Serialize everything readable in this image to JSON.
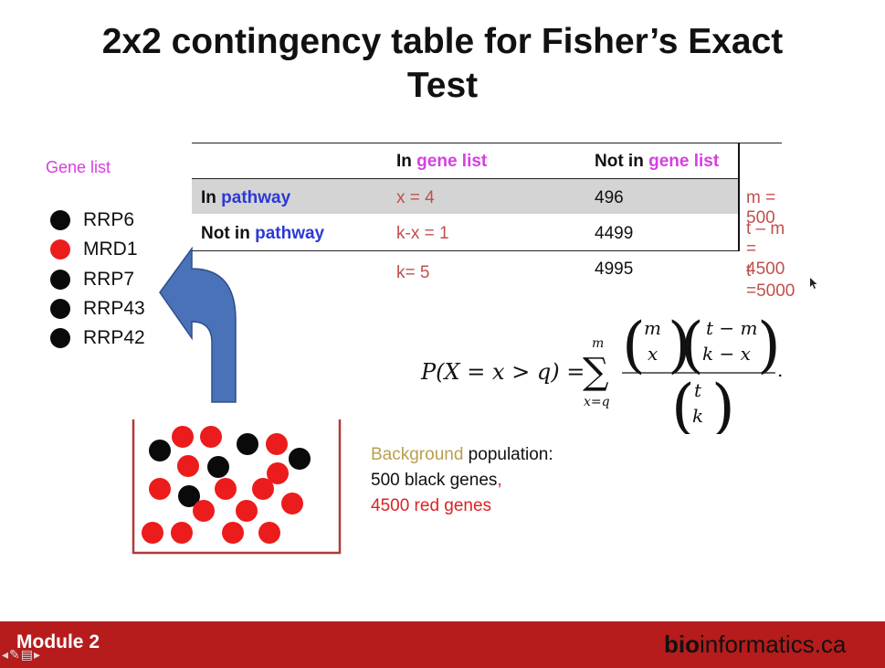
{
  "title_line1": "2x2 contingency table for Fisher’s Exact",
  "title_line2": "Test",
  "gene_list": {
    "label": "Gene list",
    "genes": [
      {
        "name": "RRP6",
        "color": "black"
      },
      {
        "name": "MRD1",
        "color": "red"
      },
      {
        "name": "RRP7",
        "color": "black"
      },
      {
        "name": "RRP43",
        "color": "black"
      },
      {
        "name": "RRP42",
        "color": "black"
      }
    ]
  },
  "table": {
    "col1_prefix": "In ",
    "col1_highlight": "gene list",
    "col2_prefix": "Not in ",
    "col2_highlight": "gene list",
    "row1_prefix": "In ",
    "row1_highlight": "pathway",
    "row2_prefix": "Not in ",
    "row2_highlight": "pathway",
    "r1c1": "x = 4",
    "r1c2": "496",
    "r2c1": "k-x = 1",
    "r2c2": "4499",
    "total_c1": "k= 5",
    "total_c2": "4995",
    "r1_total": "m = 500",
    "r2_total": "t – m = 4500",
    "grand_total": "t =5000"
  },
  "formula": {
    "lhs": "P(X = x > q) =",
    "sum_top": "m",
    "sum_bottom": "x=q",
    "b1_top": "m",
    "b1_bottom": "x",
    "b2_top": "t − m",
    "b2_bottom": "k − x",
    "b3_top": "t",
    "b3_bottom": "k"
  },
  "background": {
    "word1": "Background",
    "word2": " population:",
    "line2_a": "500 black genes",
    "line2_b": ",",
    "line3": "4500 red genes"
  },
  "footer": {
    "module": "Module 2",
    "logo_bold": "bio",
    "logo_rest": "informatics.ca"
  },
  "colors": {
    "accent_pink": "#d63fe0",
    "accent_blue": "#2b39d6",
    "value_salmon": "#c0504d",
    "footer_red": "#b61c1c",
    "arrow_blue": "#4a72b8"
  }
}
